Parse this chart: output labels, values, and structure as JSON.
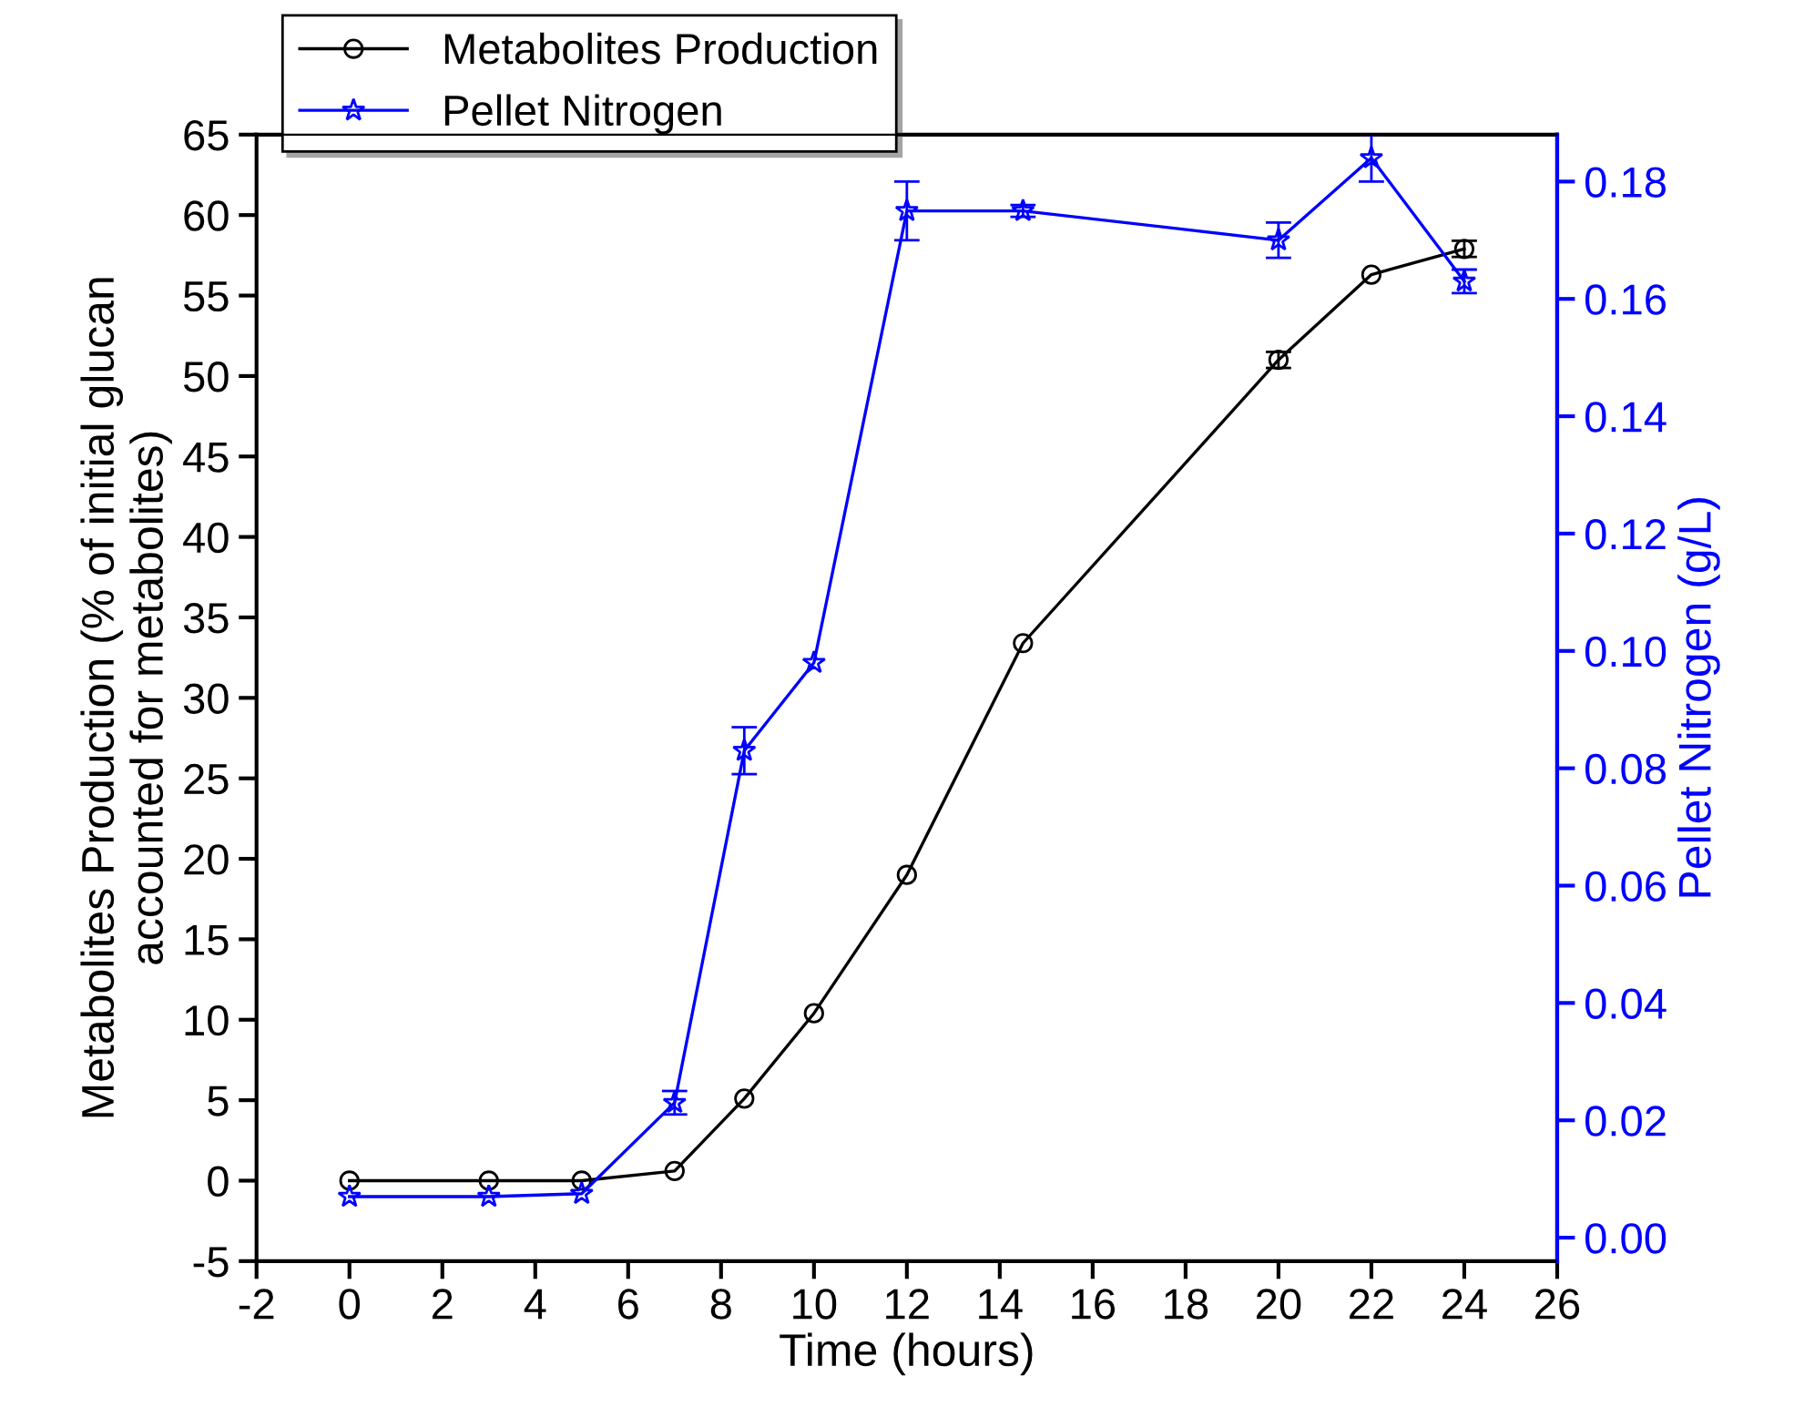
{
  "chart_data": {
    "type": "line",
    "xlabel": "Time (hours)",
    "ylabel": "Metabolites Production (% of initial glucan\naccounted for metabolites)",
    "y2label": "Pellet Nitrogen (g/L)",
    "x": [
      0,
      3,
      5,
      7,
      8.5,
      10,
      12,
      14.5,
      20,
      22,
      24
    ],
    "series": [
      {
        "name": "Metabolites Production",
        "color": "#000000",
        "marker": "circle",
        "values": [
          0,
          0,
          0,
          0.6,
          5.1,
          10.4,
          19,
          33.4,
          51,
          56.3,
          57.9
        ],
        "errors": [
          null,
          null,
          null,
          null,
          null,
          null,
          null,
          null,
          0.5,
          null,
          0.5
        ]
      },
      {
        "name": "Pellet Nitrogen",
        "color": "#0000ff",
        "marker": "star",
        "axis": "y2",
        "values": [
          0.007,
          0.007,
          0.0075,
          0.023,
          0.083,
          0.098,
          0.175,
          0.175,
          0.17,
          0.184,
          0.163
        ],
        "errors": [
          null,
          null,
          null,
          0.002,
          0.004,
          null,
          0.005,
          0.001,
          0.003,
          0.004,
          0.002
        ]
      }
    ],
    "xlim": [
      -2,
      26
    ],
    "xticks": [
      -2,
      0,
      2,
      4,
      6,
      8,
      10,
      12,
      14,
      16,
      18,
      20,
      22,
      24,
      26
    ],
    "ylim": [
      -5,
      65
    ],
    "yticks": [
      -5,
      0,
      5,
      10,
      15,
      20,
      25,
      30,
      35,
      40,
      45,
      50,
      55,
      60,
      65
    ],
    "y2lim": [
      -0.004,
      0.188
    ],
    "y2ticks": [
      {
        "value": 0,
        "label": "0.00"
      },
      {
        "value": 0.02,
        "label": "0.02"
      },
      {
        "value": 0.04,
        "label": "0.04"
      },
      {
        "value": 0.06,
        "label": "0.06"
      },
      {
        "value": 0.08,
        "label": "0.08"
      },
      {
        "value": 0.1,
        "label": "0.10"
      },
      {
        "value": 0.12,
        "label": "0.12"
      },
      {
        "value": 0.14,
        "label": "0.14"
      },
      {
        "value": 0.16,
        "label": "0.16"
      },
      {
        "value": 0.18,
        "label": "0.18"
      }
    ],
    "grid": false,
    "legend": "top left",
    "line_style": "solid"
  }
}
